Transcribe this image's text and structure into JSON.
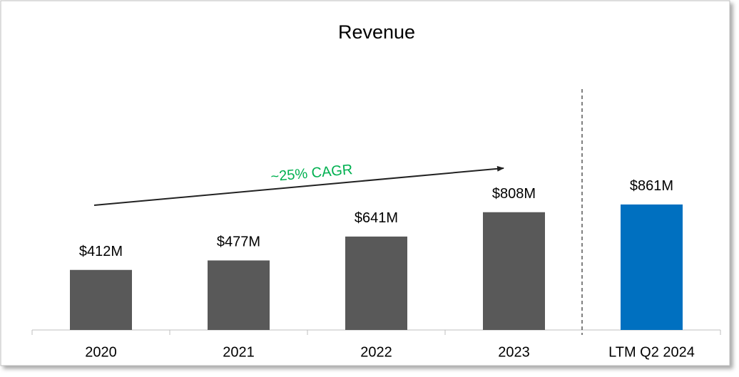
{
  "chart_data": {
    "type": "bar",
    "title": "Revenue",
    "categories": [
      "2020",
      "2021",
      "2022",
      "2023",
      "LTM Q2 2024"
    ],
    "values": [
      412,
      477,
      641,
      808,
      861
    ],
    "value_labels": [
      "$412M",
      "$477M",
      "$641M",
      "$808M",
      "$861M"
    ],
    "colors": [
      "#595959",
      "#595959",
      "#595959",
      "#595959",
      "#0070c0"
    ],
    "annotation": "~25% CAGR",
    "annotation_color": "#00b050"
  }
}
